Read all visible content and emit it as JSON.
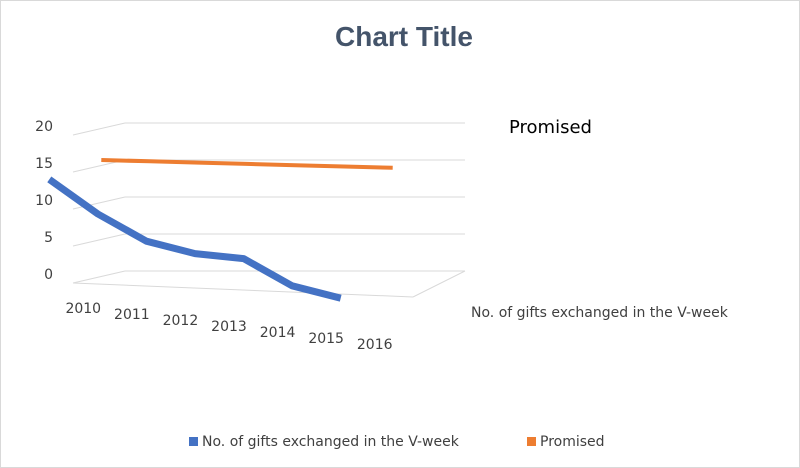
{
  "chart_data": {
    "type": "line",
    "title": "Chart Title",
    "categories": [
      "2010",
      "2011",
      "2012",
      "2013",
      "2014",
      "2015",
      "2016"
    ],
    "y_ticks": [
      "0",
      "5",
      "10",
      "15",
      "20"
    ],
    "ylim": [
      0,
      20
    ],
    "depth_labels": [
      "No. of gifts exchanged in the V-week",
      "Promised"
    ],
    "series": [
      {
        "name": "No. of gifts exchanged in the V-week",
        "values": [
          14,
          10,
          7,
          6,
          6,
          3,
          2
        ],
        "color": "#4472c4"
      },
      {
        "name": "Promised",
        "values": [
          15,
          15.5,
          16,
          16.5,
          17,
          17.5,
          18
        ],
        "color": "#ed7d31"
      }
    ],
    "legend_position": "bottom",
    "grid": true
  }
}
